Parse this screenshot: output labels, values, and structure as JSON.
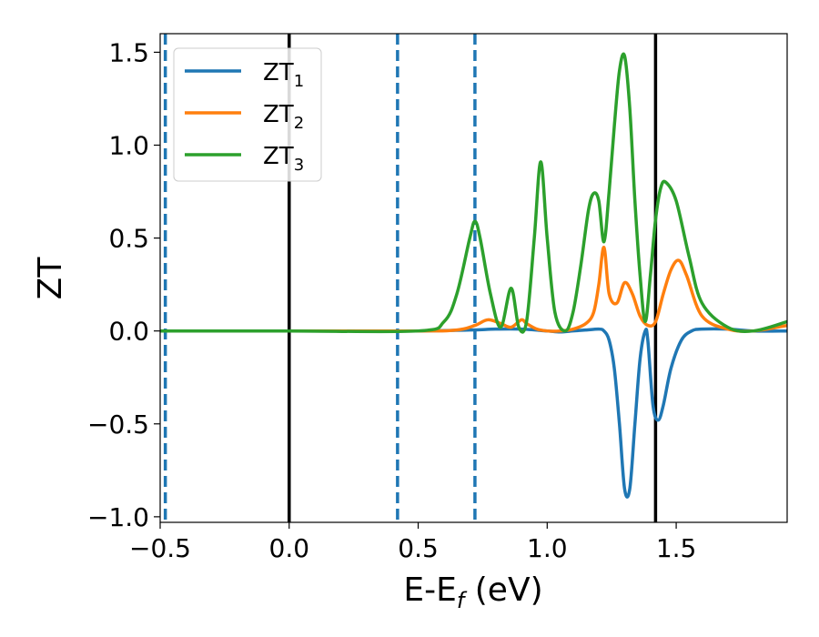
{
  "chart_data": {
    "type": "line",
    "xlabel": "E-E",
    "xlabel_sub": "f",
    "xlabel_suffix": " (eV)",
    "ylabel": "ZT",
    "xlim": [
      -0.5,
      1.93
    ],
    "ylim": [
      -1.03,
      1.6
    ],
    "x_ticks": [
      -0.5,
      0.0,
      0.5,
      1.0,
      1.5
    ],
    "x_tick_labels": [
      "−0.5",
      "0.0",
      "0.5",
      "1.0",
      "1.5"
    ],
    "y_ticks": [
      -1.0,
      -0.5,
      0.0,
      0.5,
      1.0,
      1.5
    ],
    "y_tick_labels": [
      "−1.0",
      "−0.5",
      "0.0",
      "0.5",
      "1.0",
      "1.5"
    ],
    "grid": false,
    "legend_position": "top-left",
    "colors": {
      "ZT1": "#1f77b4",
      "ZT2": "#ff7f0e",
      "ZT3": "#2ca02c",
      "solid_line": "#000000",
      "dashed_line": "#1f77b4"
    },
    "vertical_lines_solid": [
      0.0,
      1.42
    ],
    "vertical_lines_dashed": [
      -0.48,
      0.42,
      0.72
    ],
    "series": [
      {
        "name": "ZT",
        "subscript": "1",
        "key": "ZT1",
        "x": [
          -0.5,
          0.0,
          0.5,
          0.7,
          0.8,
          0.9,
          1.0,
          1.05,
          1.1,
          1.15,
          1.2,
          1.22,
          1.24,
          1.26,
          1.28,
          1.3,
          1.32,
          1.34,
          1.36,
          1.38,
          1.39,
          1.41,
          1.43,
          1.45,
          1.48,
          1.52,
          1.56,
          1.6,
          1.7,
          1.8,
          1.93
        ],
        "y": [
          0,
          0,
          0,
          0.005,
          0.01,
          0.01,
          0.0,
          -0.005,
          0.0,
          0.005,
          0.01,
          0.0,
          -0.05,
          -0.2,
          -0.5,
          -0.85,
          -0.85,
          -0.5,
          -0.15,
          0.0,
          -0.05,
          -0.4,
          -0.48,
          -0.4,
          -0.2,
          -0.05,
          0.0,
          0.01,
          0.01,
          0.0,
          0.0
        ]
      },
      {
        "name": "ZT",
        "subscript": "2",
        "key": "ZT2",
        "x": [
          -0.5,
          0.0,
          0.5,
          0.65,
          0.72,
          0.77,
          0.82,
          0.86,
          0.9,
          0.92,
          0.96,
          1.0,
          1.05,
          1.1,
          1.15,
          1.18,
          1.2,
          1.22,
          1.24,
          1.27,
          1.3,
          1.33,
          1.36,
          1.39,
          1.42,
          1.45,
          1.48,
          1.51,
          1.54,
          1.6,
          1.7,
          1.8,
          1.93
        ],
        "y": [
          0,
          0,
          0,
          0.005,
          0.03,
          0.06,
          0.04,
          0.02,
          0.06,
          0.04,
          0.01,
          0.0,
          0.0,
          0.01,
          0.04,
          0.1,
          0.25,
          0.45,
          0.2,
          0.15,
          0.26,
          0.2,
          0.08,
          0.03,
          0.05,
          0.2,
          0.33,
          0.38,
          0.3,
          0.08,
          0.01,
          0.0,
          0.03
        ]
      },
      {
        "name": "ZT",
        "subscript": "3",
        "key": "ZT3",
        "x": [
          -0.5,
          0.0,
          0.5,
          0.6,
          0.65,
          0.7,
          0.72,
          0.74,
          0.78,
          0.82,
          0.86,
          0.89,
          0.92,
          0.95,
          0.975,
          1.0,
          1.03,
          1.07,
          1.1,
          1.13,
          1.16,
          1.18,
          1.2,
          1.22,
          1.24,
          1.26,
          1.28,
          1.3,
          1.32,
          1.34,
          1.36,
          1.38,
          1.4,
          1.42,
          1.44,
          1.46,
          1.5,
          1.55,
          1.6,
          1.7,
          1.8,
          1.93
        ],
        "y": [
          0,
          0,
          0,
          0.05,
          0.2,
          0.5,
          0.59,
          0.5,
          0.2,
          0.02,
          0.23,
          0.02,
          0.05,
          0.5,
          0.91,
          0.5,
          0.1,
          0.0,
          0.1,
          0.35,
          0.65,
          0.74,
          0.7,
          0.48,
          0.75,
          1.1,
          1.4,
          1.48,
          1.2,
          0.7,
          0.3,
          0.05,
          0.3,
          0.6,
          0.77,
          0.8,
          0.7,
          0.4,
          0.15,
          0.02,
          0.0,
          0.05
        ]
      }
    ]
  }
}
